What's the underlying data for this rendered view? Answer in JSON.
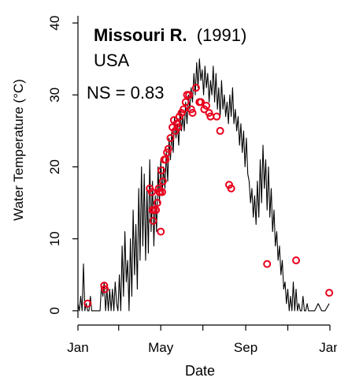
{
  "chart_data": {
    "type": "line",
    "title": "Missouri R.",
    "title_suffix": "(1991)",
    "subtitle": "USA",
    "annotation": "NS = 0.83",
    "xlabel": "Date",
    "ylabel": "Water Temperature (°C)",
    "xlim": [
      "1991-01-01",
      "1992-01-01"
    ],
    "ylim": [
      -1,
      41
    ],
    "x_ticks": [
      {
        "date": "1991-01-01",
        "label": "Jan"
      },
      {
        "date": "1991-05-01",
        "label": "May"
      },
      {
        "date": "1991-09-01",
        "label": "Sep"
      },
      {
        "date": "1992-01-01",
        "label": "Jan"
      }
    ],
    "x_minor_ticks": [
      "1991-03-01",
      "1991-07-01",
      "1991-11-01"
    ],
    "y_ticks": [
      0,
      10,
      20,
      30,
      40
    ],
    "grid": false,
    "legend": "none",
    "line_color": "#000000",
    "point_color": "#e8001c",
    "series": [
      {
        "style": "line",
        "points": [
          [
            "1991-01-01",
            1
          ],
          [
            "1991-01-03",
            0
          ],
          [
            "1991-01-05",
            2
          ],
          [
            "1991-01-07",
            0
          ],
          [
            "1991-01-09",
            6.5
          ],
          [
            "1991-01-11",
            0
          ],
          [
            "1991-01-13",
            1
          ],
          [
            "1991-01-15",
            0
          ],
          [
            "1991-01-17",
            0
          ],
          [
            "1991-01-19",
            2
          ],
          [
            "1991-01-21",
            0
          ],
          [
            "1991-01-23",
            0
          ],
          [
            "1991-01-25",
            0
          ],
          [
            "1991-01-27",
            0
          ],
          [
            "1991-01-29",
            0
          ],
          [
            "1991-01-31",
            0
          ],
          [
            "1991-02-02",
            0
          ],
          [
            "1991-02-04",
            3.5
          ],
          [
            "1991-02-06",
            2
          ],
          [
            "1991-02-08",
            4
          ],
          [
            "1991-02-10",
            0
          ],
          [
            "1991-02-12",
            3
          ],
          [
            "1991-02-14",
            0
          ],
          [
            "1991-02-16",
            3
          ],
          [
            "1991-02-18",
            0
          ],
          [
            "1991-02-20",
            3
          ],
          [
            "1991-02-22",
            0
          ],
          [
            "1991-02-24",
            4
          ],
          [
            "1991-02-26",
            1
          ],
          [
            "1991-02-28",
            0
          ],
          [
            "1991-03-02",
            5
          ],
          [
            "1991-03-04",
            0
          ],
          [
            "1991-03-06",
            9
          ],
          [
            "1991-03-08",
            2
          ],
          [
            "1991-03-10",
            11
          ],
          [
            "1991-03-12",
            4
          ],
          [
            "1991-03-14",
            7
          ],
          [
            "1991-03-16",
            0
          ],
          [
            "1991-03-18",
            10
          ],
          [
            "1991-03-20",
            2
          ],
          [
            "1991-03-22",
            14
          ],
          [
            "1991-03-24",
            5
          ],
          [
            "1991-03-26",
            12
          ],
          [
            "1991-03-28",
            3
          ],
          [
            "1991-03-30",
            17
          ],
          [
            "1991-04-01",
            7
          ],
          [
            "1991-04-03",
            20
          ],
          [
            "1991-04-05",
            9
          ],
          [
            "1991-04-07",
            19
          ],
          [
            "1991-04-09",
            7
          ],
          [
            "1991-04-11",
            17
          ],
          [
            "1991-04-13",
            8
          ],
          [
            "1991-04-15",
            21
          ],
          [
            "1991-04-17",
            11
          ],
          [
            "1991-04-19",
            18
          ],
          [
            "1991-04-21",
            9
          ],
          [
            "1991-04-23",
            16
          ],
          [
            "1991-04-25",
            11
          ],
          [
            "1991-04-27",
            20
          ],
          [
            "1991-04-29",
            15
          ],
          [
            "1991-05-01",
            21
          ],
          [
            "1991-05-03",
            16
          ],
          [
            "1991-05-05",
            20
          ],
          [
            "1991-05-07",
            17
          ],
          [
            "1991-05-09",
            22
          ],
          [
            "1991-05-11",
            18
          ],
          [
            "1991-05-13",
            24
          ],
          [
            "1991-05-15",
            21
          ],
          [
            "1991-05-17",
            25
          ],
          [
            "1991-05-19",
            22
          ],
          [
            "1991-05-21",
            27
          ],
          [
            "1991-05-23",
            24
          ],
          [
            "1991-05-25",
            26
          ],
          [
            "1991-05-27",
            23
          ],
          [
            "1991-05-29",
            28
          ],
          [
            "1991-05-31",
            25
          ],
          [
            "1991-06-02",
            27
          ],
          [
            "1991-06-04",
            25
          ],
          [
            "1991-06-06",
            29
          ],
          [
            "1991-06-08",
            26
          ],
          [
            "1991-06-10",
            30
          ],
          [
            "1991-06-12",
            28
          ],
          [
            "1991-06-14",
            31
          ],
          [
            "1991-06-16",
            29
          ],
          [
            "1991-06-18",
            33
          ],
          [
            "1991-06-20",
            30
          ],
          [
            "1991-06-22",
            34.5
          ],
          [
            "1991-06-24",
            31
          ],
          [
            "1991-06-26",
            35
          ],
          [
            "1991-06-28",
            32
          ],
          [
            "1991-06-30",
            33.5
          ],
          [
            "1991-07-02",
            30
          ],
          [
            "1991-07-04",
            34
          ],
          [
            "1991-07-06",
            31
          ],
          [
            "1991-07-08",
            33
          ],
          [
            "1991-07-10",
            29
          ],
          [
            "1991-07-12",
            32
          ],
          [
            "1991-07-14",
            30
          ],
          [
            "1991-07-16",
            34
          ],
          [
            "1991-07-18",
            29
          ],
          [
            "1991-07-20",
            33
          ],
          [
            "1991-07-22",
            28
          ],
          [
            "1991-07-24",
            31
          ],
          [
            "1991-07-26",
            27
          ],
          [
            "1991-07-28",
            32
          ],
          [
            "1991-07-30",
            28
          ],
          [
            "1991-08-01",
            30
          ],
          [
            "1991-08-03",
            27
          ],
          [
            "1991-08-05",
            29
          ],
          [
            "1991-08-07",
            26
          ],
          [
            "1991-08-09",
            30
          ],
          [
            "1991-08-11",
            27
          ],
          [
            "1991-08-13",
            31
          ],
          [
            "1991-08-15",
            26
          ],
          [
            "1991-08-17",
            28
          ],
          [
            "1991-08-19",
            25
          ],
          [
            "1991-08-21",
            27
          ],
          [
            "1991-08-23",
            23
          ],
          [
            "1991-08-25",
            26
          ],
          [
            "1991-08-27",
            22
          ],
          [
            "1991-08-29",
            25
          ],
          [
            "1991-08-31",
            20
          ],
          [
            "1991-09-02",
            24
          ],
          [
            "1991-09-04",
            19
          ],
          [
            "1991-09-06",
            18
          ],
          [
            "1991-09-08",
            15
          ],
          [
            "1991-09-10",
            17
          ],
          [
            "1991-09-12",
            13
          ],
          [
            "1991-09-14",
            16
          ],
          [
            "1991-09-16",
            12
          ],
          [
            "1991-09-18",
            18
          ],
          [
            "1991-09-20",
            13
          ],
          [
            "1991-09-22",
            21
          ],
          [
            "1991-09-24",
            15
          ],
          [
            "1991-09-26",
            23
          ],
          [
            "1991-09-28",
            17
          ],
          [
            "1991-09-30",
            21
          ],
          [
            "1991-10-02",
            14
          ],
          [
            "1991-10-04",
            20
          ],
          [
            "1991-10-06",
            13
          ],
          [
            "1991-10-08",
            17
          ],
          [
            "1991-10-10",
            11
          ],
          [
            "1991-10-12",
            14
          ],
          [
            "1991-10-14",
            9
          ],
          [
            "1991-10-16",
            11
          ],
          [
            "1991-10-18",
            7
          ],
          [
            "1991-10-20",
            9
          ],
          [
            "1991-10-22",
            5
          ],
          [
            "1991-10-24",
            7
          ],
          [
            "1991-10-26",
            3
          ],
          [
            "1991-10-28",
            4
          ],
          [
            "1991-10-30",
            1
          ],
          [
            "1991-11-01",
            3
          ],
          [
            "1991-11-03",
            0
          ],
          [
            "1991-11-05",
            2
          ],
          [
            "1991-11-07",
            0
          ],
          [
            "1991-11-09",
            4
          ],
          [
            "1991-11-11",
            0
          ],
          [
            "1991-11-13",
            3
          ],
          [
            "1991-11-15",
            0
          ],
          [
            "1991-11-17",
            1
          ],
          [
            "1991-11-19",
            0
          ],
          [
            "1991-11-21",
            0
          ],
          [
            "1991-11-23",
            2
          ],
          [
            "1991-11-25",
            0
          ],
          [
            "1991-11-27",
            0
          ],
          [
            "1991-11-29",
            1
          ],
          [
            "1991-12-01",
            0
          ],
          [
            "1991-12-05",
            0
          ],
          [
            "1991-12-10",
            0
          ],
          [
            "1991-12-15",
            1
          ],
          [
            "1991-12-20",
            0
          ],
          [
            "1991-12-25",
            0
          ],
          [
            "1991-12-31",
            1
          ]
        ]
      },
      {
        "style": "points",
        "points": [
          [
            "1991-01-15",
            1
          ],
          [
            "1991-02-08",
            3.5
          ],
          [
            "1991-02-09",
            3
          ],
          [
            "1991-04-15",
            17
          ],
          [
            "1991-04-18",
            16.5
          ],
          [
            "1991-04-19",
            14
          ],
          [
            "1991-04-20",
            12.5
          ],
          [
            "1991-04-21",
            14
          ],
          [
            "1991-04-24",
            14
          ],
          [
            "1991-04-26",
            15
          ],
          [
            "1991-04-28",
            17
          ],
          [
            "1991-04-29",
            16.5
          ],
          [
            "1991-04-30",
            16.5
          ],
          [
            "1991-05-01",
            11
          ],
          [
            "1991-05-02",
            19.5
          ],
          [
            "1991-05-03",
            16.5
          ],
          [
            "1991-05-04",
            18
          ],
          [
            "1991-05-06",
            21
          ],
          [
            "1991-05-08",
            21
          ],
          [
            "1991-05-10",
            22
          ],
          [
            "1991-05-12",
            22.5
          ],
          [
            "1991-05-15",
            24
          ],
          [
            "1991-05-18",
            25.5
          ],
          [
            "1991-05-20",
            26.5
          ],
          [
            "1991-05-22",
            25
          ],
          [
            "1991-05-24",
            26
          ],
          [
            "1991-05-26",
            25.5
          ],
          [
            "1991-05-28",
            27
          ],
          [
            "1991-05-31",
            27.5
          ],
          [
            "1991-06-03",
            28
          ],
          [
            "1991-06-06",
            29
          ],
          [
            "1991-06-08",
            30
          ],
          [
            "1991-06-11",
            30
          ],
          [
            "1991-06-14",
            28
          ],
          [
            "1991-06-16",
            27.5
          ],
          [
            "1991-06-21",
            31
          ],
          [
            "1991-06-26",
            29
          ],
          [
            "1991-06-28",
            29
          ],
          [
            "1991-07-03",
            28
          ],
          [
            "1991-07-06",
            28.5
          ],
          [
            "1991-07-10",
            27.5
          ],
          [
            "1991-07-12",
            27
          ],
          [
            "1991-07-21",
            27
          ],
          [
            "1991-07-26",
            25
          ],
          [
            "1991-08-08",
            17.5
          ],
          [
            "1991-08-11",
            17
          ],
          [
            "1991-10-02",
            6.5
          ],
          [
            "1991-11-13",
            7
          ],
          [
            "1991-12-31",
            2.5
          ]
        ]
      }
    ]
  }
}
